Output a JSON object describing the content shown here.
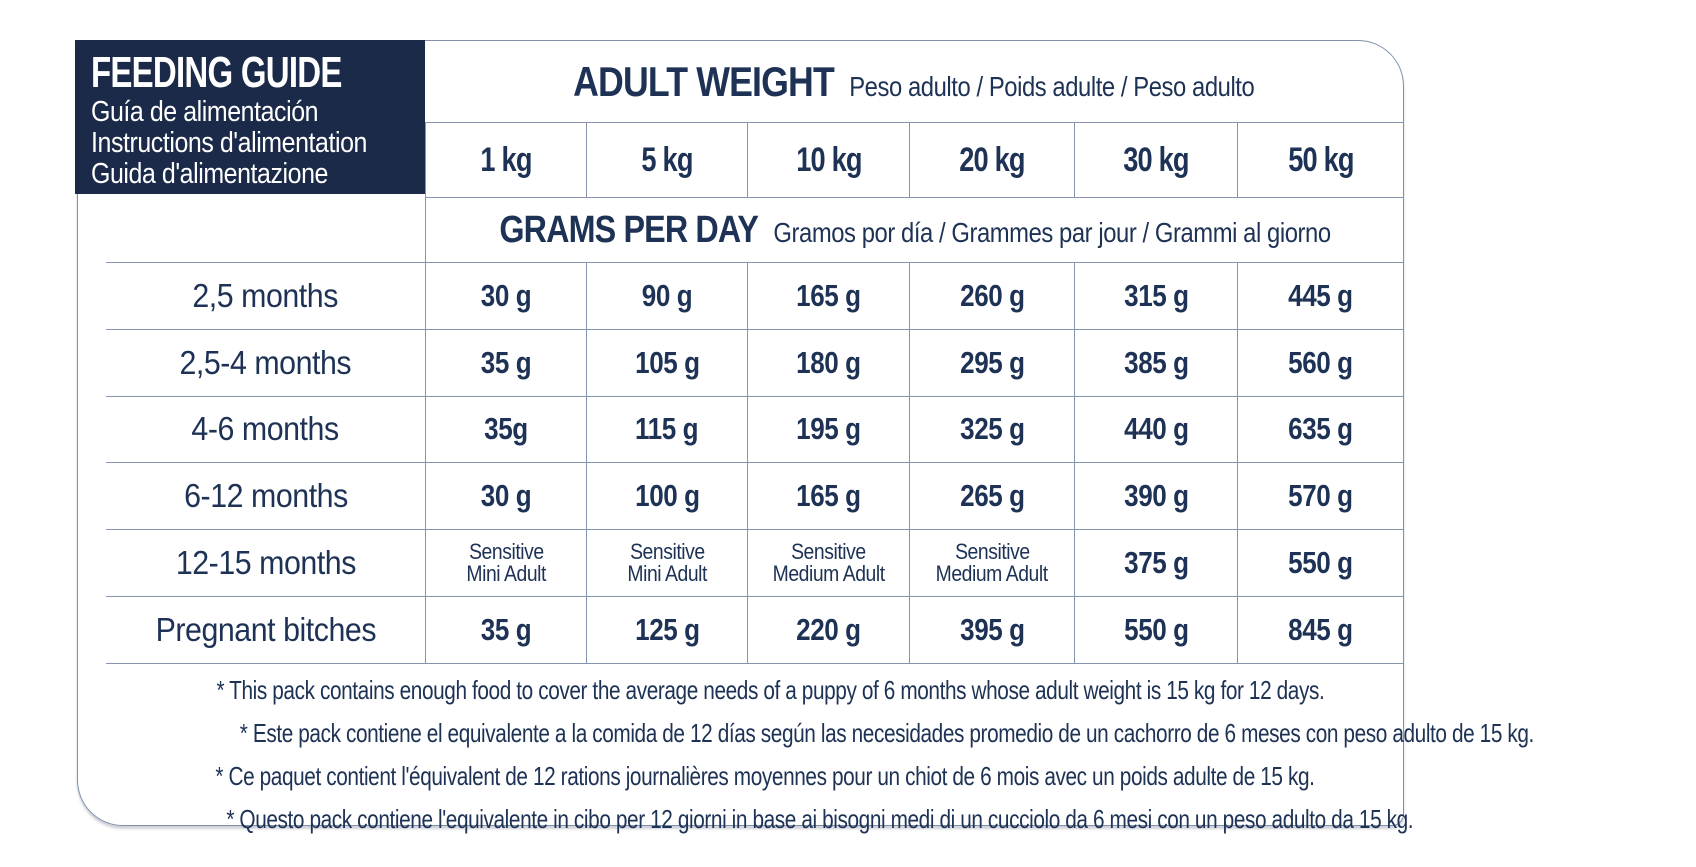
{
  "header_panel": {
    "title": "FEEDING GUIDE",
    "subtitle_es": "Guía de alimentación",
    "subtitle_fr": "Instructions d'alimentation",
    "subtitle_it": "Guida d'alimentazione"
  },
  "adult_weight_header": {
    "title": "ADULT WEIGHT",
    "subtitle": "Peso adulto / Poids adulte / Peso adulto"
  },
  "grams_header": {
    "title": "GRAMS PER DAY",
    "subtitle": "Gramos por día / Grammes par jour / Grammi al giorno"
  },
  "table": {
    "weight_columns": [
      "1 kg",
      "5 kg",
      "10 kg",
      "20 kg",
      "30 kg",
      "50 kg"
    ],
    "rows": [
      {
        "label": "2,5 months",
        "values": [
          "30 g",
          "90 g",
          "165 g",
          "260 g",
          "315 g",
          "445 g"
        ]
      },
      {
        "label": "2,5-4 months",
        "values": [
          "35 g",
          "105 g",
          "180 g",
          "295 g",
          "385 g",
          "560 g"
        ]
      },
      {
        "label": "4-6 months",
        "values": [
          "35g",
          "115 g",
          "195 g",
          "325 g",
          "440 g",
          "635 g"
        ]
      },
      {
        "label": "6-12 months",
        "values": [
          "30 g",
          "100 g",
          "165 g",
          "265 g",
          "390 g",
          "570 g"
        ]
      },
      {
        "label": "12-15 months",
        "values": [
          {
            "line1": "Sensitive",
            "line2": "Mini Adult"
          },
          {
            "line1": "Sensitive",
            "line2": "Mini Adult"
          },
          {
            "line1": "Sensitive",
            "line2": "Medium Adult"
          },
          {
            "line1": "Sensitive",
            "line2": "Medium Adult"
          },
          "375 g",
          "550 g"
        ]
      },
      {
        "label": "Pregnant bitches",
        "values": [
          "35 g",
          "125 g",
          "220 g",
          "395 g",
          "550 g",
          "845 g"
        ]
      }
    ]
  },
  "footnotes": [
    "* This pack contains enough food to cover the average needs of a puppy of 6 months whose adult weight is 15 kg for 12 days.",
    "* Este pack contiene el equivalente a la comida de 12 días según las necesidades promedio de un cachorro de 6 meses con peso adulto de 15 kg.",
    "* Ce paquet contient l'équivalent de 12 rations journalières moyennes pour un chiot de 6 mois avec un poids adulte de 15 kg.",
    "* Questo pack contiene l'equivalente in cibo per 12 giorni in base ai bisogni medi di un cucciolo da 6 mesi con un peso adulto da 15 kg."
  ],
  "colors": {
    "navy_panel": "#1b2a49",
    "text_navy": "#1d3254",
    "grid_line": "#8495ad"
  }
}
